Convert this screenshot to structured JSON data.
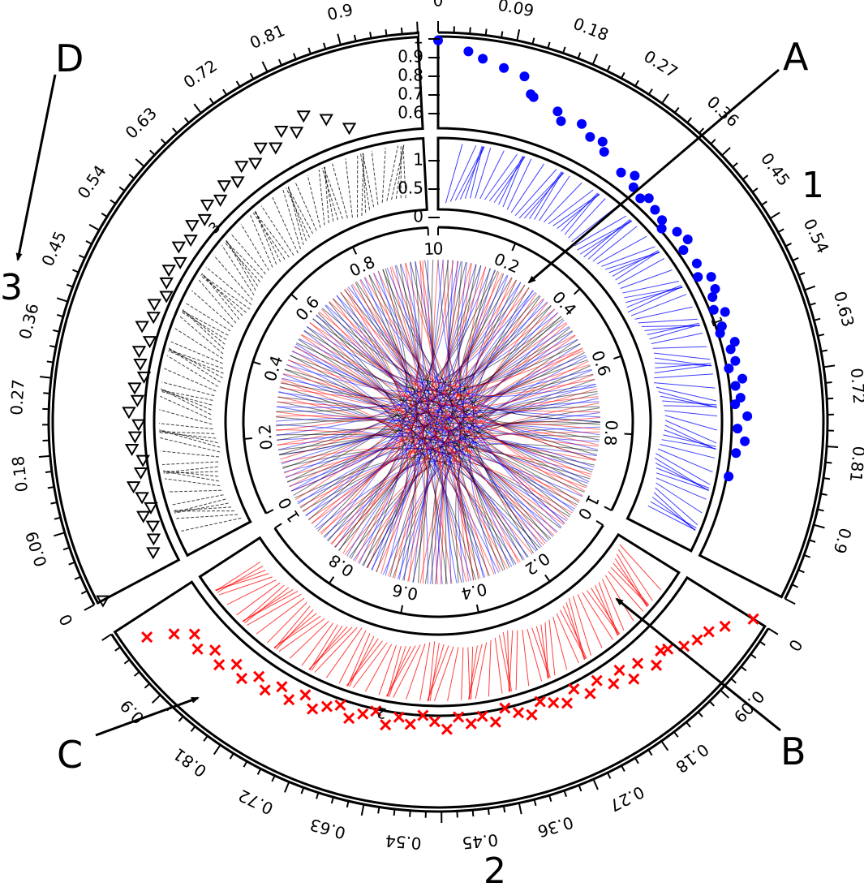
{
  "chart_data": {
    "type": "circos",
    "panel_labels": [
      "A",
      "B",
      "C",
      "D"
    ],
    "sectors": [
      {
        "name": "1",
        "color": "#0000ff"
      },
      {
        "name": "2",
        "color": "#ff0000"
      },
      {
        "name": "3",
        "color": "#000000"
      }
    ],
    "outer_ticks": [
      "0",
      "0.09",
      "0.18",
      "0.27",
      "0.36",
      "0.45",
      "0.54",
      "0.63",
      "0.72",
      "0.81",
      "0.9"
    ],
    "inner_ticks_1": [
      "0",
      "0.2",
      "0.4",
      "0.6",
      "0.8",
      "1"
    ],
    "inner_ticks_2": [
      "0",
      "0.2",
      "0.4",
      "0.6",
      "0.8",
      "1"
    ],
    "inner_ticks_3": [
      "0",
      "0.2",
      "0.4",
      "0.6",
      "0.8",
      "1"
    ],
    "mid_labels": [
      "1",
      "2",
      "3"
    ],
    "track_y_ticks_points": [
      "1",
      "0.9",
      "0.8",
      "0.7",
      "0.6"
    ],
    "track_y_ticks_lines": [
      "1",
      "0.5",
      "0"
    ],
    "point_tracks": [
      {
        "sector": "1",
        "shape": "circle",
        "color": "#0000ff",
        "x": [
          0.0,
          0.04,
          0.06,
          0.09,
          0.12,
          0.135,
          0.14,
          0.18,
          0.19,
          0.22,
          0.24,
          0.26,
          0.27,
          0.31,
          0.33,
          0.34,
          0.36,
          0.37,
          0.39,
          0.41,
          0.42,
          0.44,
          0.46,
          0.47,
          0.5,
          0.52,
          0.53,
          0.55,
          0.56,
          0.58,
          0.59,
          0.61,
          0.62,
          0.64,
          0.65,
          0.67,
          0.68,
          0.7,
          0.71,
          0.73,
          0.74,
          0.76,
          0.78,
          0.8,
          0.82,
          0.86
        ],
        "y": [
          1.0,
          0.95,
          0.92,
          0.89,
          0.87,
          0.79,
          0.78,
          0.75,
          0.71,
          0.74,
          0.7,
          0.71,
          0.67,
          0.63,
          0.66,
          0.61,
          0.59,
          0.62,
          0.6,
          0.59,
          0.56,
          0.61,
          0.63,
          0.58,
          0.6,
          0.57,
          0.63,
          0.62,
          0.59,
          0.57,
          0.62,
          0.58,
          0.56,
          0.62,
          0.59,
          0.6,
          0.56,
          0.62,
          0.58,
          0.6,
          0.57,
          0.63,
          0.58,
          0.62,
          0.58,
          0.56
        ]
      },
      {
        "sector": "2",
        "shape": "cross",
        "color": "#ff0000",
        "x": [
          0.0,
          0.03,
          0.05,
          0.07,
          0.09,
          0.11,
          0.12,
          0.14,
          0.16,
          0.18,
          0.19,
          0.21,
          0.23,
          0.25,
          0.27,
          0.29,
          0.31,
          0.33,
          0.35,
          0.37,
          0.39,
          0.41,
          0.43,
          0.45,
          0.47,
          0.49,
          0.51,
          0.53,
          0.55,
          0.57,
          0.59,
          0.61,
          0.63,
          0.65,
          0.67,
          0.69,
          0.71,
          0.73,
          0.75,
          0.77,
          0.79,
          0.81,
          0.83,
          0.85,
          0.87,
          0.89,
          0.91,
          0.93,
          0.95,
          0.97
        ],
        "y": [
          0.95,
          0.85,
          0.8,
          0.78,
          0.75,
          0.7,
          0.68,
          0.72,
          0.65,
          0.7,
          0.62,
          0.66,
          0.6,
          0.64,
          0.58,
          0.63,
          0.6,
          0.57,
          0.62,
          0.59,
          0.55,
          0.61,
          0.57,
          0.6,
          0.56,
          0.62,
          0.58,
          0.55,
          0.6,
          0.57,
          0.62,
          0.56,
          0.59,
          0.63,
          0.58,
          0.61,
          0.65,
          0.6,
          0.66,
          0.62,
          0.68,
          0.64,
          0.7,
          0.66,
          0.72,
          0.68,
          0.74,
          0.7,
          0.78,
          0.9
        ]
      },
      {
        "sector": "3",
        "shape": "triangle-down",
        "color": "#000000",
        "x": [
          0.0,
          0.03,
          0.05,
          0.07,
          0.09,
          0.1,
          0.12,
          0.14,
          0.16,
          0.18,
          0.2,
          0.22,
          0.24,
          0.26,
          0.28,
          0.3,
          0.32,
          0.34,
          0.36,
          0.38,
          0.4,
          0.42,
          0.44,
          0.46,
          0.48,
          0.5,
          0.52,
          0.54,
          0.56,
          0.58,
          0.6,
          0.62,
          0.64,
          0.66,
          0.68,
          0.7,
          0.72,
          0.74,
          0.76,
          0.78,
          0.8,
          0.82,
          0.85,
          0.88
        ],
        "y": [
          0.99,
          0.65,
          0.62,
          0.6,
          0.63,
          0.58,
          0.61,
          0.64,
          0.59,
          0.57,
          0.62,
          0.6,
          0.58,
          0.63,
          0.59,
          0.61,
          0.57,
          0.6,
          0.62,
          0.58,
          0.64,
          0.6,
          0.62,
          0.58,
          0.61,
          0.63,
          0.6,
          0.65,
          0.62,
          0.66,
          0.63,
          0.67,
          0.64,
          0.68,
          0.65,
          0.7,
          0.67,
          0.72,
          0.68,
          0.74,
          0.7,
          0.76,
          0.7,
          0.62
        ]
      }
    ],
    "line_tracks": [
      {
        "sector": "1",
        "color": "#0000ff",
        "style": "fan lines",
        "y_range": [
          0,
          1
        ]
      },
      {
        "sector": "2",
        "color": "#ff0000",
        "style": "fan lines",
        "y_range": [
          0,
          1
        ]
      },
      {
        "sector": "3",
        "color": "#000000",
        "style": "dashed fan lines",
        "y_range": [
          0,
          1
        ]
      }
    ],
    "links": {
      "colors": [
        "#0000ff",
        "#ff0000",
        "#000000"
      ],
      "description": "dense link ribbons between all sectors"
    }
  }
}
